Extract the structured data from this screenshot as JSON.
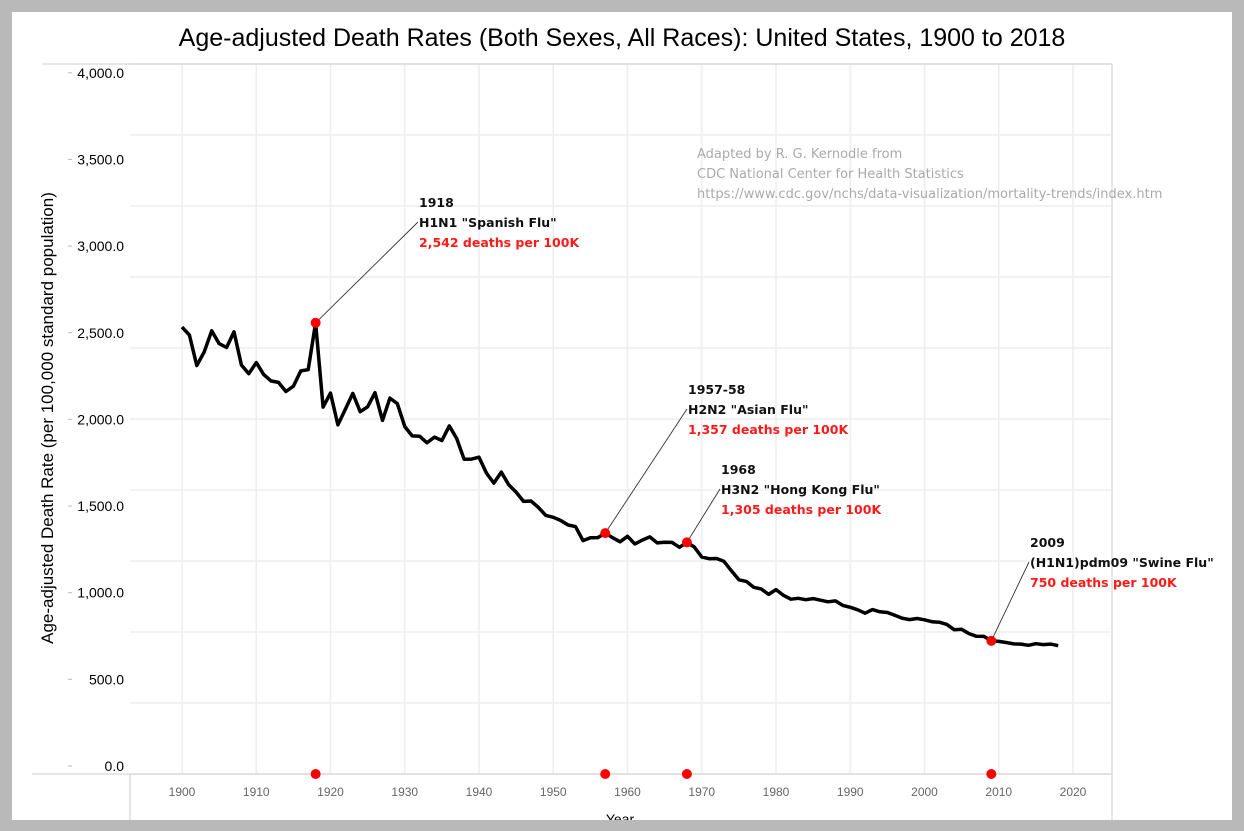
{
  "chart_data": {
    "type": "line",
    "title": "Age-adjusted Death Rates (Both Sexes, All Races): United States, 1900 to 2018",
    "xlabel": "Year",
    "ylabel": "Age-adjusted Death Rate (per 100,000 standard population)",
    "xlim": [
      1893,
      2025
    ],
    "ylim": [
      0,
      4000
    ],
    "grid": true,
    "x_ticks": [
      "1900",
      "1910",
      "1920",
      "1930",
      "1940",
      "1950",
      "1960",
      "1970",
      "1980",
      "1990",
      "2000",
      "2010",
      "2020"
    ],
    "y_ticks": [
      "4,000.0",
      "3,500.0",
      "3,000.0",
      "2,500.0",
      "2,000.0",
      "1,500.0",
      "1,000.0",
      "500.0",
      "0.0"
    ],
    "y_tick_values": [
      4000,
      3500,
      3000,
      2500,
      2000,
      1500,
      1000,
      500,
      0
    ],
    "series": [
      {
        "name": "Age-adjusted death rate",
        "color": "#000000",
        "start_year": 1900,
        "values": [
          2518,
          2473,
          2301,
          2379,
          2497,
          2425,
          2403,
          2491,
          2304,
          2255,
          2318,
          2250,
          2214,
          2206,
          2155,
          2185,
          2271,
          2278,
          2542,
          2067,
          2146,
          1967,
          2056,
          2144,
          2041,
          2069,
          2148,
          1992,
          2118,
          2087,
          1957,
          1905,
          1903,
          1866,
          1898,
          1879,
          1961,
          1890,
          1773,
          1774,
          1785,
          1696,
          1639,
          1701,
          1630,
          1588,
          1536,
          1538,
          1502,
          1457,
          1446,
          1428,
          1403,
          1394,
          1315,
          1331,
          1332,
          1357,
          1331,
          1308,
          1339,
          1296,
          1318,
          1336,
          1302,
          1306,
          1305,
          1277,
          1305,
          1279,
          1222,
          1213,
          1214,
          1198,
          1145,
          1094,
          1085,
          1052,
          1043,
          1012,
          1039,
          1007,
          985,
          990,
          982,
          988,
          979,
          970,
          975,
          950,
          939,
          925,
          906,
          926,
          914,
          910,
          894,
          878,
          870,
          876,
          869,
          858,
          855,
          843,
          813,
          815,
          791,
          776,
          775,
          750,
          747,
          741,
          733,
          732,
          725,
          734,
          729,
          732,
          723
        ]
      }
    ],
    "annotations": [
      {
        "year": 1918,
        "value": 2542,
        "label_year": "1918",
        "label_name": "H1N1 \"Spanish Flu\"",
        "label_deaths": "2,542 deaths per 100K"
      },
      {
        "year": 1957,
        "value": 1357,
        "label_year": "1957-58",
        "label_name": "H2N2 \"Asian Flu\"",
        "label_deaths": "1,357 deaths per 100K"
      },
      {
        "year": 1968,
        "value": 1305,
        "label_year": "1968",
        "label_name": "H3N2 \"Hong Kong Flu\"",
        "label_deaths": "1,305 deaths per 100K"
      },
      {
        "year": 2009,
        "value": 750,
        "label_year": "2009",
        "label_name": "(H1N1)pdm09 \"Swine Flu\"",
        "label_deaths": "750 deaths per 100K"
      }
    ],
    "marker_color": "#ff0000",
    "credit": [
      "Adapted by R. G. Kernodle from",
      "CDC National Center for Health Statistics",
      "https://www.cdc.gov/nchs/data-visualization/mortality-trends/index.htm"
    ]
  }
}
